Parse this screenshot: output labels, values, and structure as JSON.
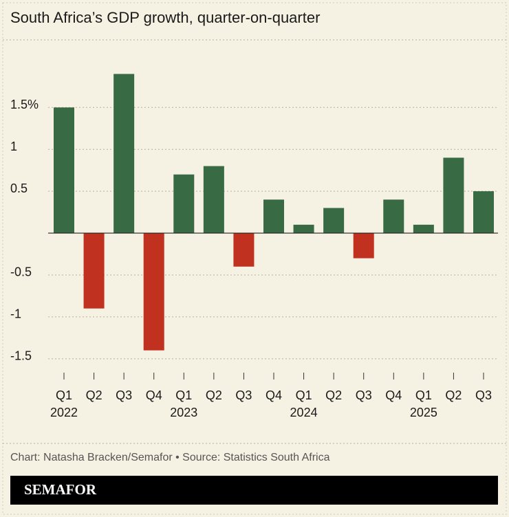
{
  "chart_data": {
    "type": "bar",
    "title": "South Africa’s GDP growth, quarter-on-quarter",
    "categories": [
      "Q1",
      "Q2",
      "Q3",
      "Q4",
      "Q1",
      "Q2",
      "Q3",
      "Q4",
      "Q1",
      "Q2",
      "Q3",
      "Q4",
      "Q1",
      "Q2",
      "Q3"
    ],
    "years": [
      "2022",
      null,
      null,
      null,
      "2023",
      null,
      null,
      null,
      "2024",
      null,
      null,
      null,
      "2025",
      null,
      null
    ],
    "values": [
      1.5,
      -0.9,
      1.9,
      -1.4,
      0.7,
      0.8,
      -0.4,
      0.4,
      0.1,
      0.3,
      -0.3,
      0.4,
      0.1,
      0.9,
      0.5
    ],
    "positive_color": "#386a44",
    "negative_color": "#c0321f",
    "ylim": [
      -1.6,
      2.2
    ],
    "yticks": [
      {
        "value": 1.5,
        "label": "1.5%"
      },
      1,
      0.5,
      -0.5,
      -1,
      -1.5
    ],
    "grid": true,
    "footer": "Chart: Natasha Bracken/Semafor • Source: Statistics South Africa",
    "brand": "SEMAFOR"
  }
}
